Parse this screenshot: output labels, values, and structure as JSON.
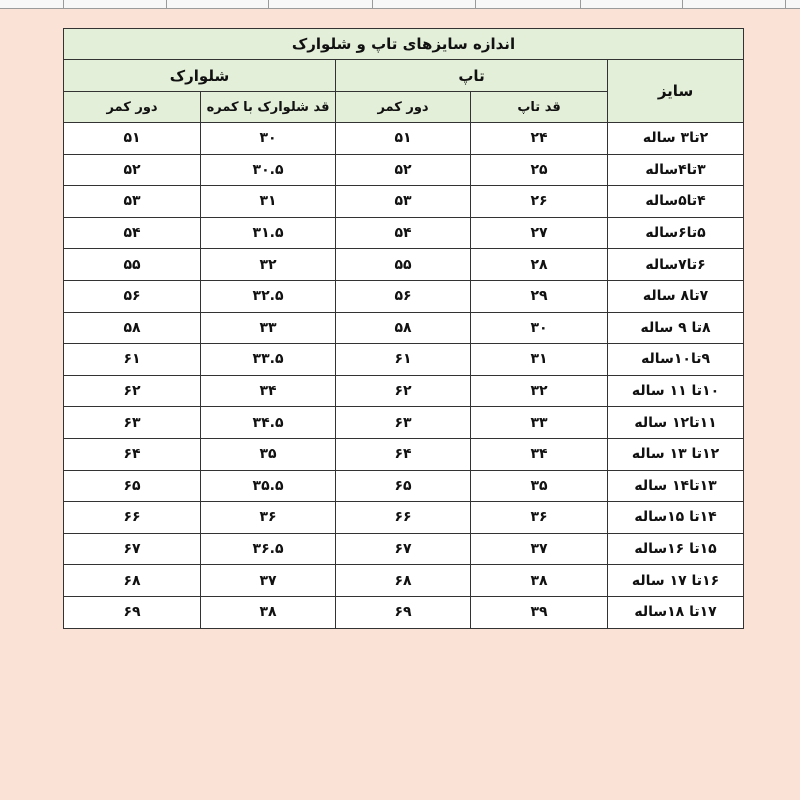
{
  "title": "اندازه سایزهای تاپ و شلوارک",
  "groups": {
    "size": "سایز",
    "top": "تاپ",
    "shorts": "شلوارک"
  },
  "subheaders": {
    "top_length": "قد تاپ",
    "top_waist": "دور کمر",
    "shorts_length": "قد شلوارک با کمره",
    "shorts_waist": "دور کمر"
  },
  "rows": [
    [
      "۲تا۳ ساله",
      "۲۴",
      "۵۱",
      "۳۰",
      "۵۱"
    ],
    [
      "۳تا۴ساله",
      "۲۵",
      "۵۲",
      "۳۰.۵",
      "۵۲"
    ],
    [
      "۴تا۵ساله",
      "۲۶",
      "۵۳",
      "۳۱",
      "۵۳"
    ],
    [
      "۵تا۶ساله",
      "۲۷",
      "۵۴",
      "۳۱.۵",
      "۵۴"
    ],
    [
      "۶تا۷ساله",
      "۲۸",
      "۵۵",
      "۳۲",
      "۵۵"
    ],
    [
      "۷تا۸ ساله",
      "۲۹",
      "۵۶",
      "۳۲.۵",
      "۵۶"
    ],
    [
      "۸تا ۹ ساله",
      "۳۰",
      "۵۸",
      "۳۳",
      "۵۸"
    ],
    [
      "۹تا۱۰ساله",
      "۳۱",
      "۶۱",
      "۳۳.۵",
      "۶۱"
    ],
    [
      "۱۰تا ۱۱ ساله",
      "۳۲",
      "۶۲",
      "۳۴",
      "۶۲"
    ],
    [
      "۱۱تا۱۲ ساله",
      "۳۳",
      "۶۳",
      "۳۴.۵",
      "۶۳"
    ],
    [
      "۱۲تا ۱۳ ساله",
      "۳۴",
      "۶۴",
      "۳۵",
      "۶۴"
    ],
    [
      "۱۳تا۱۴ ساله",
      "۳۵",
      "۶۵",
      "۳۵.۵",
      "۶۵"
    ],
    [
      "۱۴تا ۱۵ساله",
      "۳۶",
      "۶۶",
      "۳۶",
      "۶۶"
    ],
    [
      "۱۵تا ۱۶ساله",
      "۳۷",
      "۶۷",
      "۳۶.۵",
      "۶۷"
    ],
    [
      "۱۶تا ۱۷ ساله",
      "۳۸",
      "۶۸",
      "۳۷",
      "۶۸"
    ],
    [
      "۱۷تا ۱۸ساله",
      "۳۹",
      "۶۹",
      "۳۸",
      "۶۹"
    ]
  ],
  "colors": {
    "background": "#fbe2d6",
    "header": "#e3efd9",
    "border": "#333333"
  }
}
